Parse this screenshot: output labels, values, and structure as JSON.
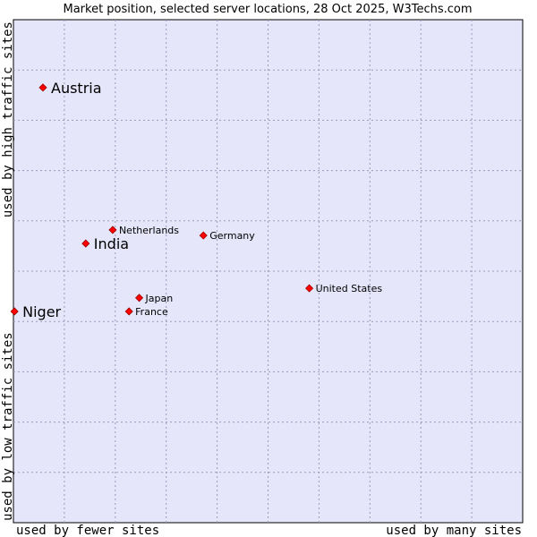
{
  "chart_data": {
    "type": "scatter",
    "title": "Market position, selected server locations, 28 Oct 2025, W3Techs.com",
    "xlabel_left": "used by fewer sites",
    "xlabel_right": "used by many sites",
    "ylabel_bottom": "used by low traffic sites",
    "ylabel_top": "used by high traffic sites",
    "xlim": [
      0,
      100
    ],
    "ylim": [
      0,
      100
    ],
    "grid": true,
    "colors": {
      "plot_bg": "#e6e6fa",
      "grid": "#9999bb",
      "border": "#000000",
      "marker": "#ff0000",
      "marker_edge": "#990000"
    },
    "points": [
      {
        "name": "Austria",
        "x": 5.8,
        "y": 86.5,
        "size": "large"
      },
      {
        "name": "India",
        "x": 14.2,
        "y": 55.5,
        "size": "large"
      },
      {
        "name": "Niger",
        "x": 0.2,
        "y": 42.0,
        "size": "large"
      },
      {
        "name": "Netherlands",
        "x": 19.5,
        "y": 58.2,
        "size": "small"
      },
      {
        "name": "Germany",
        "x": 37.3,
        "y": 57.1,
        "size": "small"
      },
      {
        "name": "United States",
        "x": 58.1,
        "y": 46.6,
        "size": "small"
      },
      {
        "name": "Japan",
        "x": 24.7,
        "y": 44.7,
        "size": "small"
      },
      {
        "name": "France",
        "x": 22.7,
        "y": 42.0,
        "size": "small"
      }
    ]
  }
}
